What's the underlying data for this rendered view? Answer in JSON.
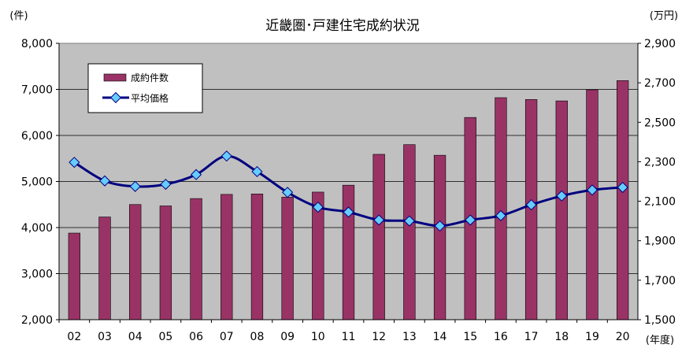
{
  "chart_data": {
    "type": "bar",
    "title": "近畿圏･戸建住宅成約状況",
    "left_unit": "(件)",
    "right_unit": "(万円)",
    "x_unit": "(年度)",
    "categories": [
      "02",
      "03",
      "04",
      "05",
      "06",
      "07",
      "08",
      "09",
      "10",
      "11",
      "12",
      "13",
      "14",
      "15",
      "16",
      "17",
      "18",
      "19",
      "20"
    ],
    "series": [
      {
        "name": "成約件数",
        "type": "bar",
        "axis": "left",
        "color": "#993366",
        "values": [
          3880,
          4230,
          4500,
          4470,
          4630,
          4720,
          4730,
          4660,
          4770,
          4920,
          5590,
          5800,
          5570,
          6390,
          6820,
          6780,
          6750,
          6990,
          7190
        ]
      },
      {
        "name": "平均価格",
        "type": "line",
        "axis": "right",
        "color": "#000080",
        "marker_color": "#66CCFF",
        "values": [
          2297,
          2203,
          2175,
          2186,
          2235,
          2329,
          2250,
          2145,
          2070,
          2045,
          2005,
          2000,
          1975,
          2005,
          2027,
          2082,
          2127,
          2157,
          2170
        ]
      }
    ],
    "y_left": {
      "min": 2000,
      "max": 8000,
      "ticks": [
        "2,000",
        "3,000",
        "4,000",
        "5,000",
        "6,000",
        "7,000",
        "8,000"
      ]
    },
    "y_right": {
      "min": 1500,
      "max": 2900,
      "ticks": [
        "1,500",
        "1,700",
        "1,900",
        "2,100",
        "2,300",
        "2,500",
        "2,700",
        "2,900"
      ]
    },
    "grid": true,
    "legend": "top-left",
    "plot_background": "#c0c0c0"
  }
}
